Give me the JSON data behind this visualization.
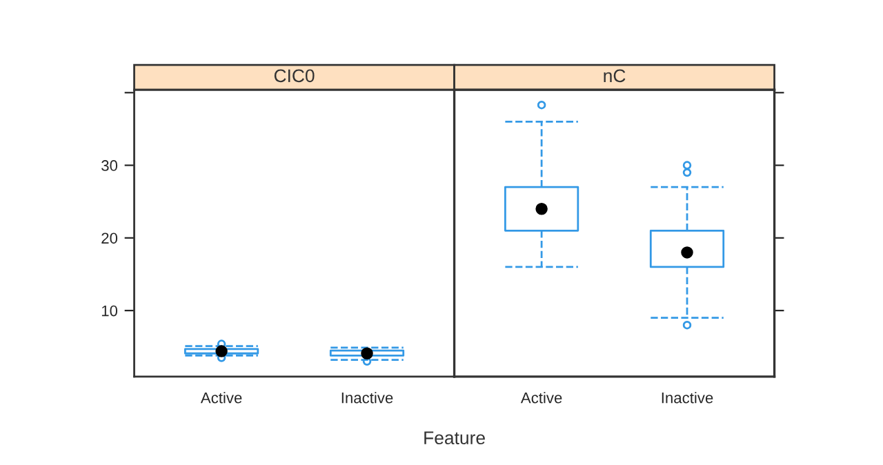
{
  "chart_data": [
    {
      "type": "box",
      "title": "CIC0",
      "xlabel": "Feature",
      "categories": [
        "Active",
        "Inactive"
      ],
      "color": "#3399e6",
      "ylim": [
        0.9,
        40.4
      ],
      "yticks": [
        10,
        20,
        30,
        {
          "value": 40,
          "label": null
        }
      ],
      "boxes": [
        {
          "low": 3.8,
          "q1": 4.1,
          "median": 4.4,
          "q3": 4.7,
          "high": 5.1,
          "outliers": [
            5.4,
            3.5
          ]
        },
        {
          "low": 3.2,
          "q1": 3.8,
          "median": 4.1,
          "q3": 4.5,
          "high": 4.9,
          "outliers": [
            3.0
          ]
        }
      ]
    },
    {
      "type": "box",
      "title": "nC",
      "categories": [
        "Active",
        "Inactive"
      ],
      "color": "#3399e6",
      "ylim": [
        0.9,
        40.4
      ],
      "yticks": [
        10,
        20,
        30,
        {
          "value": 40,
          "label": null
        }
      ],
      "tick_labels": "x",
      "boxes": [
        {
          "low": 16,
          "q1": 21,
          "median": 24,
          "q3": 27,
          "high": 36,
          "outliers": [
            38.3
          ]
        },
        {
          "low": 9,
          "q1": 16,
          "median": 18,
          "q3": 21,
          "high": 27,
          "outliers": [
            30,
            29,
            8
          ]
        }
      ]
    }
  ]
}
